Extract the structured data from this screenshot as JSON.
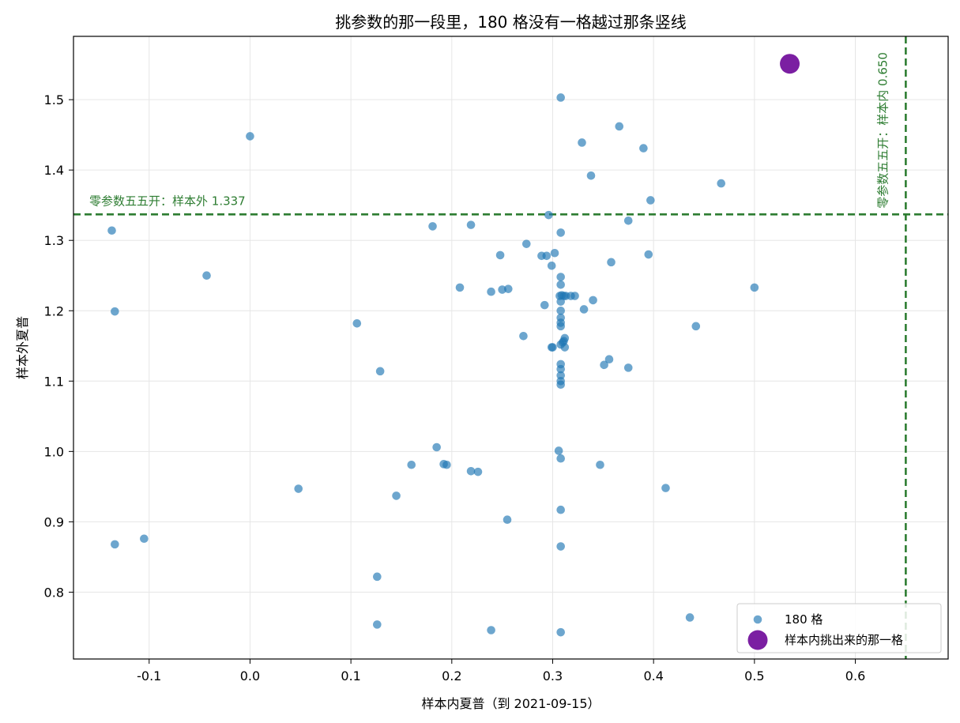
{
  "chart_data": {
    "type": "scatter",
    "title": "挑参数的那一段里，180 格没有一格越过那条竖线",
    "xlabel": "样本内夏普（到 2021-09-15）",
    "ylabel": "样本外夏普",
    "xlim": [
      -0.175,
      0.692
    ],
    "ylim": [
      0.705,
      1.59
    ],
    "x_ticks": [
      -0.1,
      0.0,
      0.1,
      0.2,
      0.3,
      0.4,
      0.5,
      0.6
    ],
    "x_tick_labels": [
      "-0.1",
      "0.0",
      "0.1",
      "0.2",
      "0.3",
      "0.4",
      "0.5",
      "0.6"
    ],
    "y_ticks": [
      0.8,
      0.9,
      1.0,
      1.1,
      1.2,
      1.3,
      1.4,
      1.5
    ],
    "y_tick_labels": [
      "0.8",
      "0.9",
      "1.0",
      "1.1",
      "1.2",
      "1.3",
      "1.4",
      "1.5"
    ],
    "grid": true,
    "legend_position": "lower-right",
    "colors": {
      "grid_points": "#1f77b4",
      "picked": "#7b1fa2",
      "reference": "#2e7d32"
    },
    "series": [
      {
        "name": "180 格",
        "points": [
          [
            0.308,
            1.503
          ],
          [
            0.366,
            1.462
          ],
          [
            0.329,
            1.439
          ],
          [
            0.39,
            1.431
          ],
          [
            0.0,
            1.448
          ],
          [
            0.338,
            1.392
          ],
          [
            0.467,
            1.381
          ],
          [
            0.397,
            1.357
          ],
          [
            0.296,
            1.336
          ],
          [
            0.375,
            1.328
          ],
          [
            0.181,
            1.32
          ],
          [
            0.219,
            1.322
          ],
          [
            0.308,
            1.311
          ],
          [
            -0.137,
            1.314
          ],
          [
            0.274,
            1.295
          ],
          [
            0.302,
            1.282
          ],
          [
            0.248,
            1.279
          ],
          [
            0.289,
            1.278
          ],
          [
            0.294,
            1.278
          ],
          [
            0.395,
            1.28
          ],
          [
            0.358,
            1.269
          ],
          [
            0.299,
            1.264
          ],
          [
            -0.043,
            1.25
          ],
          [
            0.308,
            1.248
          ],
          [
            0.308,
            1.237
          ],
          [
            0.208,
            1.233
          ],
          [
            0.5,
            1.233
          ],
          [
            0.239,
            1.227
          ],
          [
            0.25,
            1.23
          ],
          [
            0.256,
            1.231
          ],
          [
            0.307,
            1.221
          ],
          [
            0.309,
            1.222
          ],
          [
            0.311,
            1.221
          ],
          [
            0.313,
            1.221
          ],
          [
            0.318,
            1.221
          ],
          [
            0.322,
            1.221
          ],
          [
            0.308,
            1.213
          ],
          [
            0.34,
            1.215
          ],
          [
            0.292,
            1.208
          ],
          [
            0.331,
            1.202
          ],
          [
            -0.134,
            1.199
          ],
          [
            0.308,
            1.2
          ],
          [
            0.308,
            1.19
          ],
          [
            0.308,
            1.183
          ],
          [
            0.308,
            1.178
          ],
          [
            0.106,
            1.182
          ],
          [
            0.442,
            1.178
          ],
          [
            0.271,
            1.164
          ],
          [
            0.312,
            1.161
          ],
          [
            0.308,
            1.152
          ],
          [
            0.31,
            1.155
          ],
          [
            0.311,
            1.157
          ],
          [
            0.299,
            1.148
          ],
          [
            0.3,
            1.148
          ],
          [
            0.312,
            1.148
          ],
          [
            0.356,
            1.131
          ],
          [
            0.308,
            1.124
          ],
          [
            0.351,
            1.123
          ],
          [
            0.375,
            1.119
          ],
          [
            0.308,
            1.117
          ],
          [
            0.129,
            1.114
          ],
          [
            0.308,
            1.108
          ],
          [
            0.308,
            1.1
          ],
          [
            0.308,
            1.095
          ],
          [
            0.185,
            1.006
          ],
          [
            0.306,
            1.001
          ],
          [
            0.308,
            0.99
          ],
          [
            0.16,
            0.981
          ],
          [
            0.192,
            0.982
          ],
          [
            0.195,
            0.981
          ],
          [
            0.347,
            0.981
          ],
          [
            0.219,
            0.972
          ],
          [
            0.226,
            0.971
          ],
          [
            0.048,
            0.947
          ],
          [
            0.412,
            0.948
          ],
          [
            0.145,
            0.937
          ],
          [
            0.308,
            0.917
          ],
          [
            0.255,
            0.903
          ],
          [
            -0.105,
            0.876
          ],
          [
            -0.134,
            0.868
          ],
          [
            0.308,
            0.865
          ],
          [
            0.126,
            0.822
          ],
          [
            0.436,
            0.764
          ],
          [
            0.126,
            0.754
          ],
          [
            0.239,
            0.746
          ],
          [
            0.308,
            0.743
          ]
        ]
      },
      {
        "name": "样本内挑出来的那一格",
        "points": [
          [
            0.535,
            1.551
          ]
        ]
      }
    ],
    "reference_lines": [
      {
        "orientation": "horizontal",
        "value": 1.337,
        "label": "零参数五五开：样本外 1.337"
      },
      {
        "orientation": "vertical",
        "value": 0.65,
        "label": "零参数五五开：样本内 0.650"
      }
    ]
  }
}
